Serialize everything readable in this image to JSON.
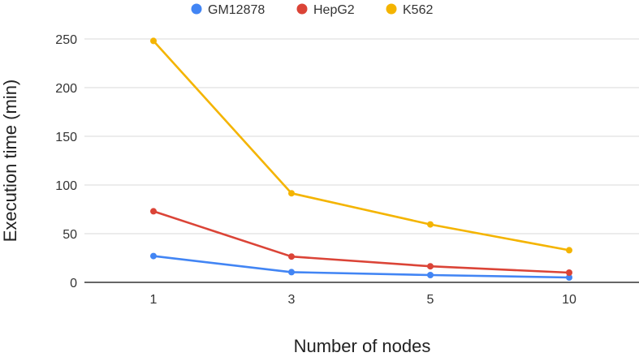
{
  "chart_data": {
    "type": "line",
    "title": "",
    "xlabel": "Number of nodes",
    "ylabel": "Execution time (min)",
    "categories": [
      "1",
      "3",
      "5",
      "10"
    ],
    "ylim": [
      0,
      250
    ],
    "yticks": [
      0,
      50,
      100,
      150,
      200,
      250
    ],
    "grid": true,
    "legend_position": "top",
    "series": [
      {
        "name": "GM12878",
        "color": "#4285f4",
        "values": [
          27,
          10.5,
          7.5,
          5
        ]
      },
      {
        "name": "HepG2",
        "color": "#db4437",
        "values": [
          73,
          26.5,
          16.5,
          10
        ]
      },
      {
        "name": "K562",
        "color": "#f4b400",
        "values": [
          248,
          91.5,
          59.5,
          33
        ]
      }
    ]
  }
}
